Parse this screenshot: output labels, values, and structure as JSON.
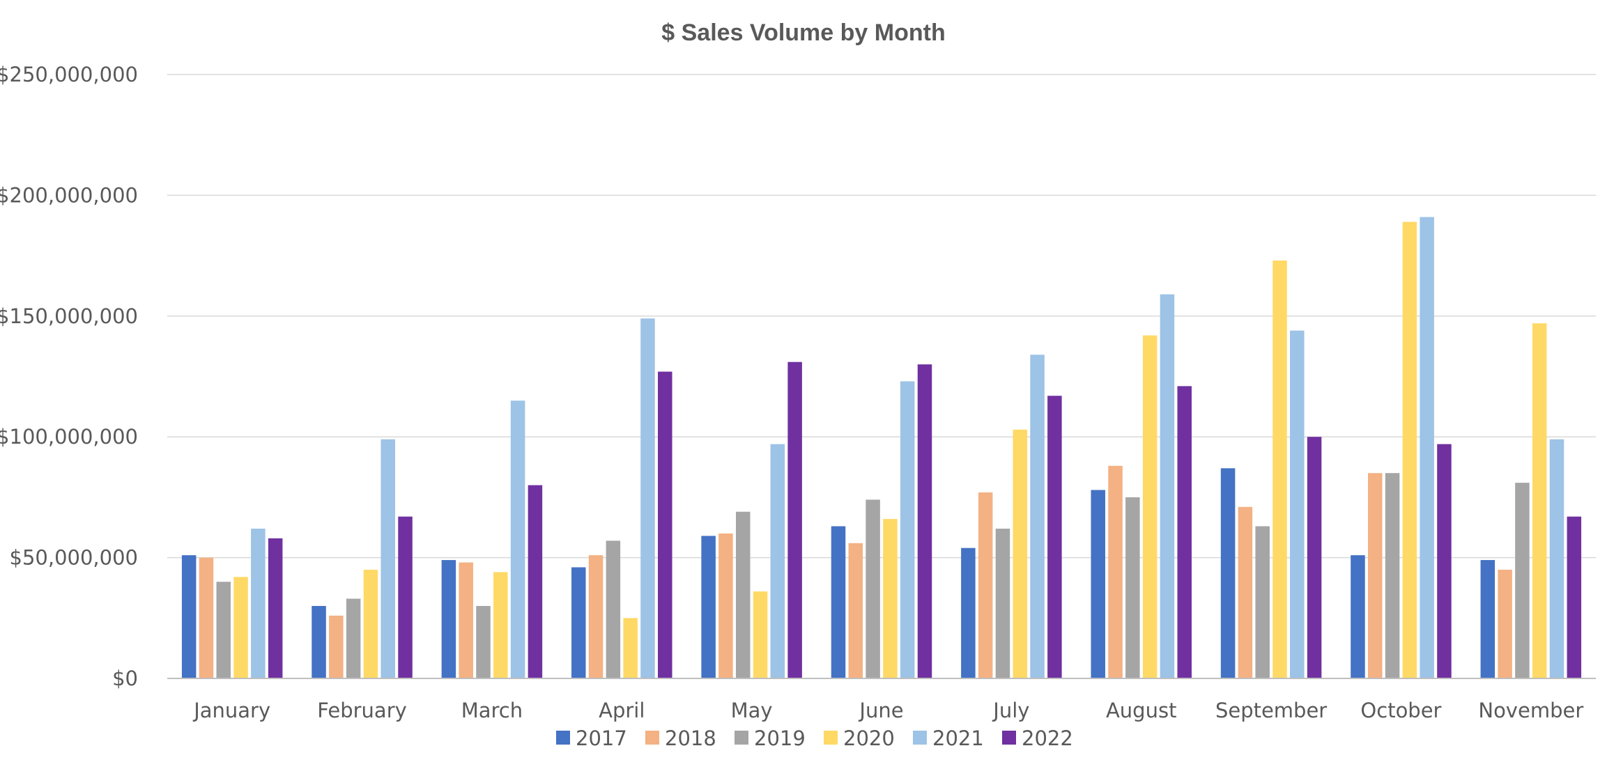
{
  "chart_data": {
    "type": "bar",
    "title": "$ Sales Volume by Month",
    "xlabel": "",
    "ylabel": "",
    "ylim": [
      0,
      250000000
    ],
    "yticks": [
      0,
      50000000,
      100000000,
      150000000,
      200000000,
      250000000
    ],
    "ytick_labels": [
      "$0",
      "$50,000,000",
      "$100,000,000",
      "$150,000,000",
      "$200,000,000",
      "$250,000,000"
    ],
    "grid": true,
    "legend_position": "bottom",
    "categories": [
      "January",
      "February",
      "March",
      "April",
      "May",
      "June",
      "July",
      "August",
      "September",
      "October",
      "November"
    ],
    "series": [
      {
        "name": "2017",
        "color": "#4472C4",
        "values": [
          51000000,
          30000000,
          49000000,
          46000000,
          59000000,
          63000000,
          54000000,
          78000000,
          87000000,
          51000000,
          49000000
        ]
      },
      {
        "name": "2018",
        "color": "#F4B183",
        "values": [
          50000000,
          26000000,
          48000000,
          51000000,
          60000000,
          56000000,
          77000000,
          88000000,
          71000000,
          85000000,
          45000000
        ]
      },
      {
        "name": "2019",
        "color": "#A5A5A5",
        "values": [
          40000000,
          33000000,
          30000000,
          57000000,
          69000000,
          74000000,
          62000000,
          75000000,
          63000000,
          85000000,
          81000000
        ]
      },
      {
        "name": "2020",
        "color": "#FFD966",
        "values": [
          42000000,
          45000000,
          44000000,
          25000000,
          36000000,
          66000000,
          103000000,
          142000000,
          173000000,
          189000000,
          147000000
        ]
      },
      {
        "name": "2021",
        "color": "#9DC3E6",
        "values": [
          62000000,
          99000000,
          115000000,
          149000000,
          97000000,
          123000000,
          134000000,
          159000000,
          144000000,
          191000000,
          99000000
        ]
      },
      {
        "name": "2022",
        "color": "#7030A0",
        "values": [
          58000000,
          67000000,
          80000000,
          127000000,
          131000000,
          130000000,
          117000000,
          121000000,
          100000000,
          97000000,
          67000000
        ]
      }
    ]
  }
}
